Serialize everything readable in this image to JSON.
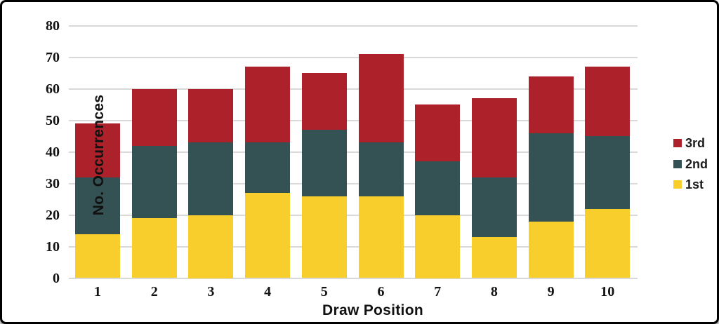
{
  "chart_data": {
    "type": "bar",
    "variant": "stacked-vertical",
    "title": "",
    "xlabel": "Draw Position",
    "ylabel": "No. Occurrences",
    "categories": [
      "1",
      "2",
      "3",
      "4",
      "5",
      "6",
      "7",
      "8",
      "9",
      "10"
    ],
    "series": [
      {
        "name": "1st",
        "color": "#F8CE2D",
        "values": [
          14,
          19,
          20,
          27,
          26,
          26,
          20,
          13,
          18,
          22
        ]
      },
      {
        "name": "2nd",
        "color": "#345254",
        "values": [
          18,
          23,
          23,
          16,
          21,
          17,
          17,
          19,
          28,
          23
        ]
      },
      {
        "name": "3rd",
        "color": "#AD212B",
        "values": [
          17,
          18,
          17,
          24,
          18,
          28,
          18,
          25,
          18,
          22
        ]
      }
    ],
    "stack_totals": [
      49,
      60,
      60,
      67,
      65,
      71,
      55,
      57,
      64,
      67
    ],
    "ylim": [
      0,
      80
    ],
    "ytick_step": 10,
    "grid": "horizontal",
    "gridline_color": "#D9D9D9",
    "legend_position": "right",
    "legend_order": [
      "3rd",
      "2nd",
      "1st"
    ],
    "text_color": "#121212",
    "background_color": "#FFFFFF",
    "frame_border_color": "#000000"
  }
}
